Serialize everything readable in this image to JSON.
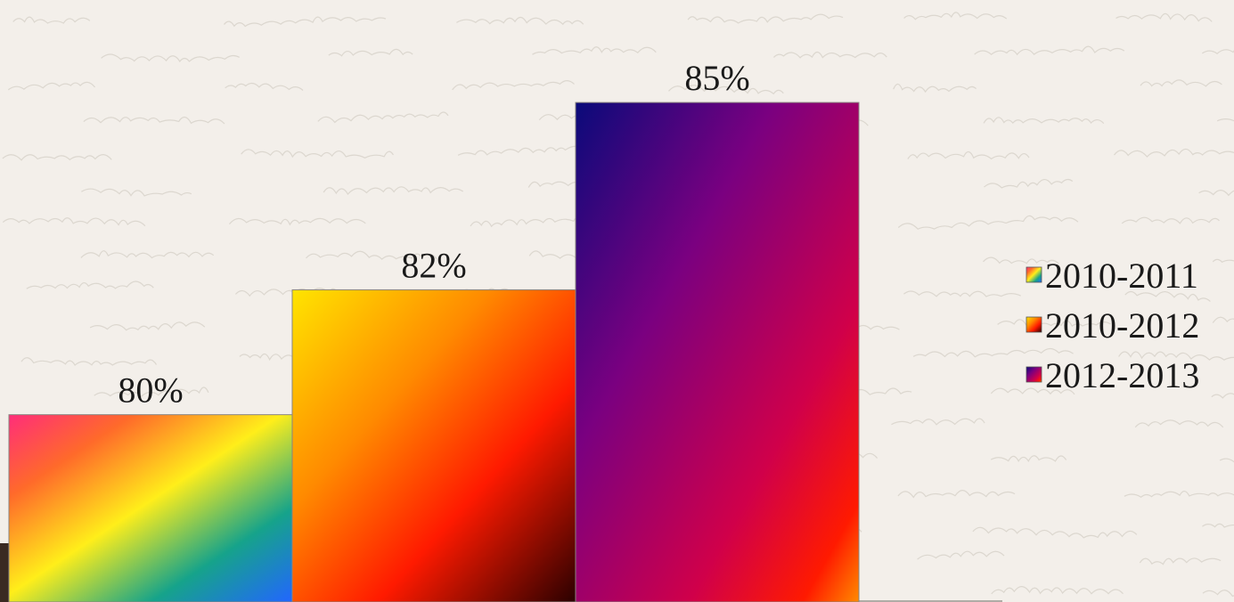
{
  "chart_data": {
    "type": "bar",
    "categories": [
      "2010-2011",
      "2010-2012",
      "2012-2013"
    ],
    "values": [
      80,
      82,
      85
    ],
    "data_labels": [
      "80%",
      "82%",
      "85%"
    ],
    "ylim": [
      77,
      85.8
    ],
    "legend": {
      "placement": "right",
      "entries": [
        "2010-2011",
        "2010-2012",
        "2012-2013"
      ]
    },
    "grid": false,
    "title": "",
    "xlabel": "",
    "ylabel": ""
  }
}
